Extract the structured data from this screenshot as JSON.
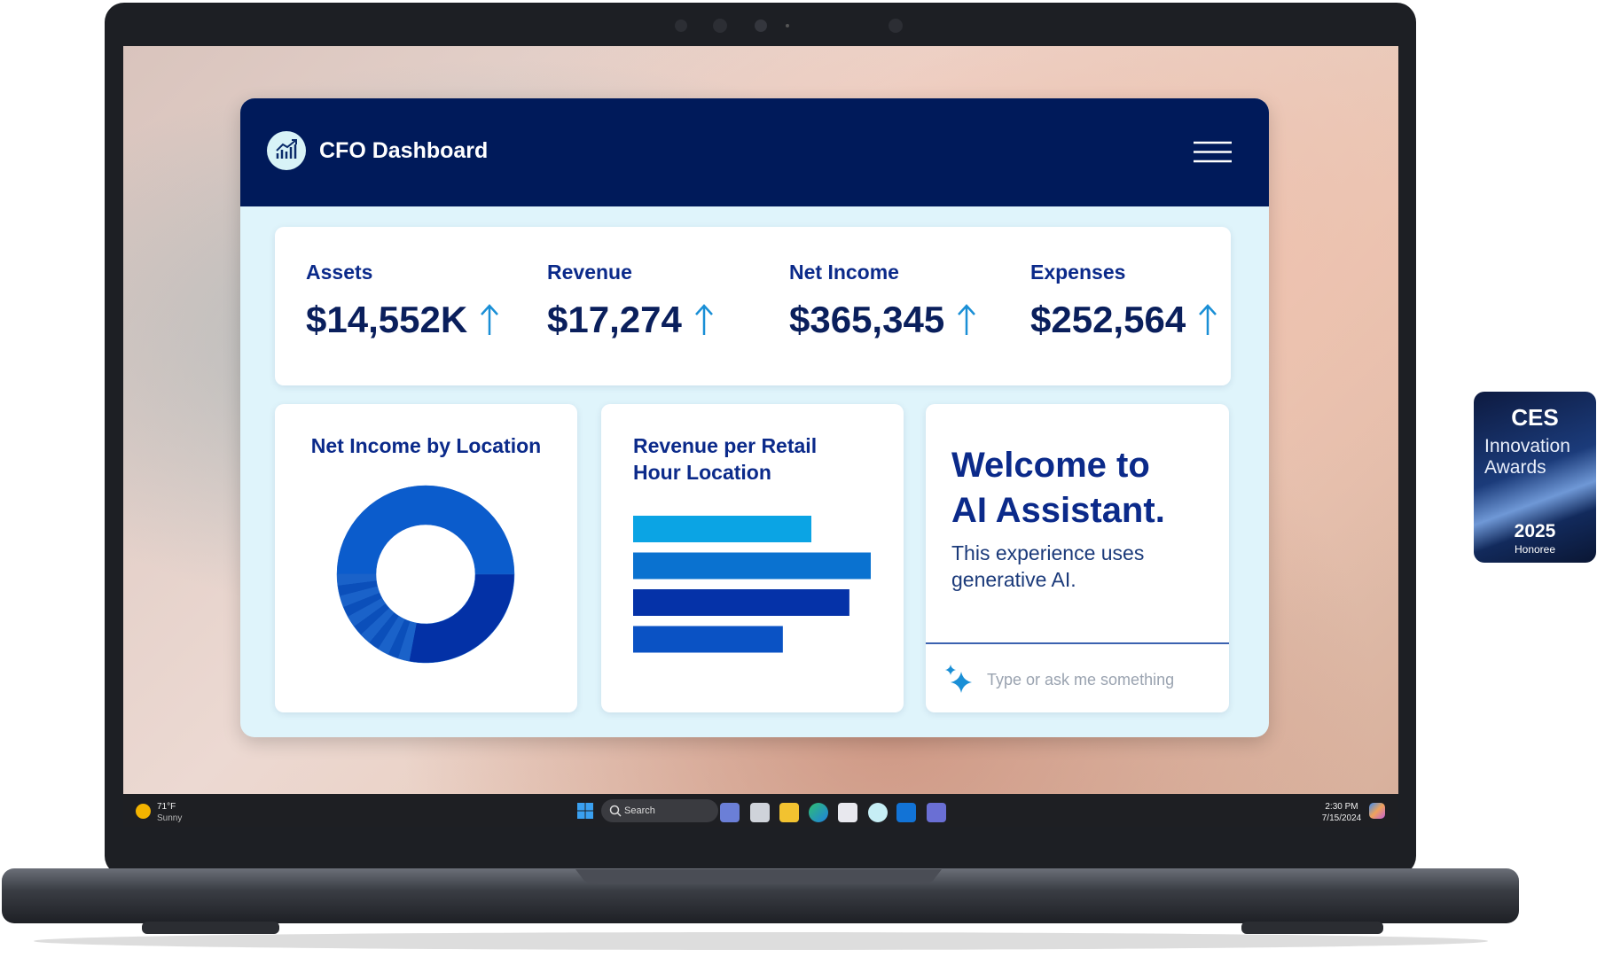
{
  "app": {
    "title": "CFO Dashboard"
  },
  "kpis": [
    {
      "label": "Assets",
      "value": "$14,552K"
    },
    {
      "label": "Revenue",
      "value": "$17,274"
    },
    {
      "label": "Net Income",
      "value": "$365,345"
    },
    {
      "label": "Expenses",
      "value": "$252,564"
    }
  ],
  "charts": [
    {
      "type": "pie",
      "title": "Net Income by Location",
      "values": [
        50,
        28,
        2,
        2,
        2,
        2,
        2,
        2,
        2,
        2,
        2,
        2,
        2
      ],
      "colors": [
        "#0b5ccc",
        "#0331a6",
        "#1a62c9",
        "#0b4fba",
        "#1a62c9",
        "#0b4fba",
        "#1a62c9",
        "#0b4fba",
        "#1a62c9",
        "#0b4fba",
        "#1a62c9",
        "#0b4fba",
        "#1a62c9"
      ]
    },
    {
      "type": "bar",
      "title": "Revenue per Retail Hour Location",
      "values": [
        75,
        100,
        91,
        63
      ],
      "xlim": [
        0,
        100
      ],
      "colors": [
        "#0ba4e4",
        "#0a72d0",
        "#0532a8",
        "#0a52c4"
      ]
    }
  ],
  "assistant": {
    "title": "Welcome to AI Assistant.",
    "subtitle": "This experience uses generative AI.",
    "placeholder": "Type or ask me something"
  },
  "taskbar": {
    "temperature": "71°F",
    "weather": "Sunny",
    "search": "Search",
    "time": "2:30 PM",
    "date": "7/15/2024"
  },
  "badge": {
    "brand": "CES",
    "award": "Innovation Awards",
    "year": "2025",
    "status": "Honoree"
  }
}
